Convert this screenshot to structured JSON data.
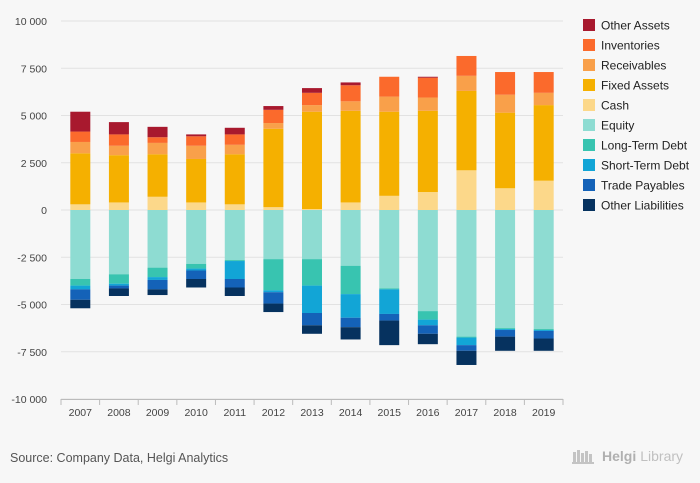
{
  "chart_data": {
    "type": "bar",
    "stacked": true,
    "categories": [
      "2007",
      "2008",
      "2009",
      "2010",
      "2011",
      "2012",
      "2013",
      "2014",
      "2015",
      "2016",
      "2017",
      "2018",
      "2019"
    ],
    "ylim": [
      -10000,
      10000
    ],
    "yticks": [
      -10000,
      -7500,
      -5000,
      -2500,
      0,
      2500,
      5000,
      7500,
      10000
    ],
    "ytick_labels": [
      "-10 000",
      "-7 500",
      "-5 000",
      "-2 500",
      "0",
      "2 500",
      "5 000",
      "7 500",
      "10 000"
    ],
    "grid": true,
    "legend_position": "right",
    "title": "",
    "xlabel": "",
    "ylabel": "",
    "positive_series": [
      {
        "name": "Cash",
        "color": "#fcd88a",
        "values": [
          300,
          400,
          700,
          400,
          300,
          150,
          50,
          400,
          750,
          950,
          2100,
          1150,
          1550
        ]
      },
      {
        "name": "Fixed Assets",
        "color": "#f5b000",
        "values": [
          2700,
          2500,
          2250,
          2300,
          2650,
          4150,
          5150,
          4850,
          4450,
          4300,
          4200,
          4000,
          4000
        ]
      },
      {
        "name": "Receivables",
        "color": "#f9a04a",
        "values": [
          600,
          500,
          600,
          700,
          500,
          300,
          350,
          500,
          800,
          700,
          800,
          950,
          650
        ]
      },
      {
        "name": "Inventories",
        "color": "#fb6a2c",
        "values": [
          550,
          600,
          300,
          500,
          550,
          700,
          650,
          850,
          1050,
          1050,
          1050,
          1200,
          1100
        ]
      },
      {
        "name": "Other Assets",
        "color": "#a8192e",
        "values": [
          1050,
          650,
          550,
          100,
          350,
          200,
          250,
          150,
          0,
          50,
          0,
          0,
          0
        ]
      }
    ],
    "negative_series": [
      {
        "name": "Equity",
        "color": "#8edcd2",
        "values": [
          -3650,
          -3400,
          -3050,
          -2850,
          -2650,
          -2600,
          -2600,
          -2950,
          -4150,
          -5350,
          -6700,
          -6250,
          -6300
        ]
      },
      {
        "name": "Long-Term Debt",
        "color": "#38c4b0",
        "values": [
          -350,
          -500,
          -500,
          -250,
          -50,
          -1650,
          -1400,
          -1500,
          -50,
          -450,
          -50,
          -50,
          -50
        ]
      },
      {
        "name": "Short-Term Debt",
        "color": "#12a5d6",
        "values": [
          -200,
          -100,
          -150,
          -100,
          -950,
          -100,
          -1450,
          -1250,
          -1300,
          -300,
          -400,
          -50,
          -50
        ]
      },
      {
        "name": "Trade Payables",
        "color": "#1462b8",
        "values": [
          -550,
          -150,
          -500,
          -450,
          -450,
          -600,
          -650,
          -500,
          -350,
          -450,
          -300,
          -350,
          -400
        ]
      },
      {
        "name": "Other Liabilities",
        "color": "#06325f",
        "values": [
          -450,
          -400,
          -300,
          -450,
          -450,
          -450,
          -450,
          -650,
          -1300,
          -550,
          -750,
          -750,
          -650
        ]
      }
    ],
    "legend_order": [
      "Other Assets",
      "Inventories",
      "Receivables",
      "Fixed Assets",
      "Cash",
      "Equity",
      "Long-Term Debt",
      "Short-Term Debt",
      "Trade Payables",
      "Other Liabilities"
    ]
  },
  "footer": {
    "source": "Source: Company Data, Helgi Analytics",
    "brand_name": "Helgi",
    "brand_sub": "Library"
  }
}
